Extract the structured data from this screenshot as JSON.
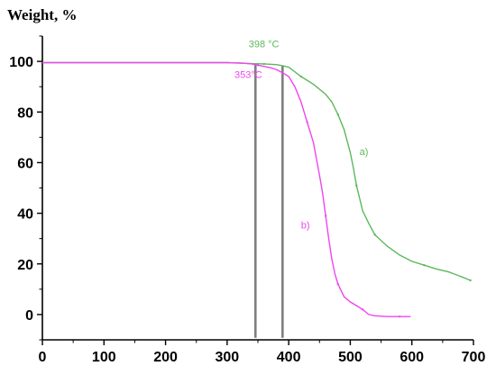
{
  "chart_data": {
    "type": "line",
    "title": "",
    "xlabel": "",
    "ylabel": "Weight, %",
    "xlim": [
      0,
      700
    ],
    "ylim": [
      -10,
      110
    ],
    "xticks": [
      0,
      100,
      200,
      300,
      400,
      500,
      600,
      700
    ],
    "yticks": [
      0,
      20,
      40,
      60,
      80,
      100
    ],
    "grid": false,
    "legend": "none",
    "series": [
      {
        "label": "a)",
        "color": "#5cb85c",
        "x": [
          0,
          300,
          320,
          340,
          360,
          380,
          390,
          400,
          420,
          440,
          460,
          470,
          480,
          490,
          500,
          505,
          510,
          515,
          520,
          530,
          540,
          560,
          580,
          600,
          620,
          640,
          660,
          680,
          695
        ],
        "y": [
          99.5,
          99.5,
          99.3,
          99.1,
          99.0,
          98.7,
          98.3,
          97.7,
          94.0,
          91.0,
          87.0,
          84.0,
          79.0,
          73.0,
          64.0,
          58.0,
          51.0,
          46.0,
          41.0,
          36.0,
          31.5,
          27.0,
          23.5,
          21.0,
          19.5,
          18.0,
          16.8,
          15.0,
          13.5
        ],
        "annotation": {
          "text": "a)",
          "x": 515,
          "y": 63,
          "color": "#5cb85c"
        },
        "onset": {
          "x": 390,
          "text": "398 °C",
          "label_x": 335,
          "label_y": 105.5
        }
      },
      {
        "label": "b)",
        "color": "#ee46ee",
        "x": [
          0,
          300,
          320,
          340,
          350,
          360,
          370,
          380,
          390,
          400,
          410,
          420,
          430,
          440,
          450,
          455,
          460,
          465,
          470,
          475,
          480,
          490,
          500,
          510,
          520,
          530,
          540,
          560,
          580,
          598
        ],
        "y": [
          99.5,
          99.5,
          99.4,
          99.0,
          98.5,
          98.0,
          97.5,
          96.8,
          95.5,
          94.0,
          90.0,
          84.0,
          76.0,
          68.0,
          55.0,
          48.0,
          39.0,
          30.0,
          22.0,
          16.0,
          12.0,
          7.0,
          5.0,
          3.5,
          2.0,
          0.0,
          -0.5,
          -0.8,
          -0.8,
          -0.8
        ],
        "annotation": {
          "text": "b)",
          "x": 420,
          "y": 34,
          "color": "#ee46ee"
        },
        "onset": {
          "x": 346,
          "text": "353°C",
          "label_x": 312,
          "label_y": 93.5
        }
      }
    ]
  }
}
